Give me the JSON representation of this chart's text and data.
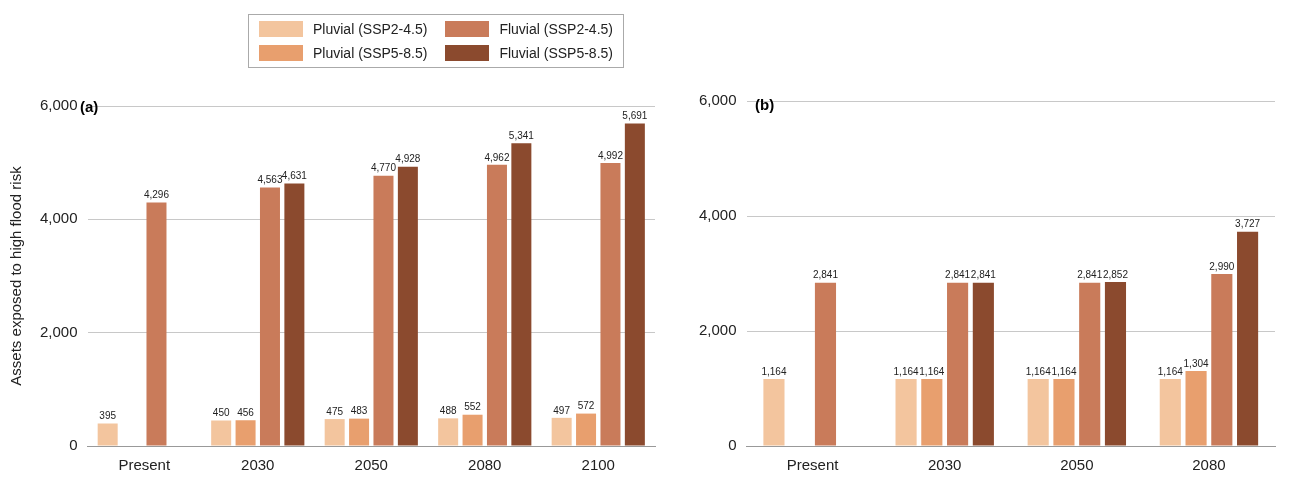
{
  "chart_data": [
    {
      "type": "bar",
      "title": "(a)",
      "ylabel": "Assets exposed to high flood risk",
      "categories": [
        "Present",
        "2030",
        "2050",
        "2080",
        "2100"
      ],
      "series": [
        {
          "name": "Pluvial (SSP2-4.5)",
          "color": "#f3c59e",
          "values": [
            395,
            450,
            475,
            488,
            497
          ],
          "value_labels": [
            "395",
            "450",
            "475",
            "488",
            "497"
          ]
        },
        {
          "name": "Pluvial (SSP5-8.5)",
          "color": "#e89f6e",
          "values": [
            null,
            456,
            483,
            552,
            572
          ],
          "value_labels": [
            null,
            "456",
            "483",
            "552",
            "572"
          ]
        },
        {
          "name": "Fluvial (SSP2-4.5)",
          "color": "#c97b5a",
          "values": [
            4296,
            4563,
            4770,
            4962,
            4992
          ],
          "value_labels": [
            "4,296",
            "4,563",
            "4,770",
            "4,962",
            "4,992"
          ]
        },
        {
          "name": "Fluvial (SSP5-8.5)",
          "color": "#8b4a2e",
          "values": [
            null,
            4631,
            4928,
            5341,
            5691
          ],
          "value_labels": [
            null,
            "4,631",
            "4,928",
            "5,341",
            "5,691"
          ]
        }
      ],
      "ylim": [
        0,
        6000
      ],
      "yticks": [
        0,
        {
          "value": 2000,
          "label": "2,000"
        },
        {
          "value": 4000,
          "label": "4,000"
        },
        {
          "value": 6000,
          "label": "6,000"
        }
      ],
      "grid": "y",
      "legend": "top"
    },
    {
      "type": "bar",
      "title": "(b)",
      "categories": [
        "Present",
        "2030",
        "2050",
        "2080"
      ],
      "series": [
        {
          "color": "#f3c59e",
          "values": [
            1164,
            1164,
            1164,
            1164
          ],
          "value_labels": [
            "1,164",
            "1,164",
            "1,164",
            "1,164"
          ]
        },
        {
          "color": "#e89f6e",
          "values": [
            null,
            1164,
            1164,
            1304
          ],
          "value_labels": [
            null,
            "1,164",
            "1,164",
            "1,304"
          ]
        },
        {
          "color": "#c97b5a",
          "values": [
            2841,
            2841,
            2841,
            2990
          ],
          "value_labels": [
            "2,841",
            "2,841",
            "2,841",
            "2,990"
          ]
        },
        {
          "color": "#8b4a2e",
          "values": [
            null,
            2841,
            2852,
            3727
          ],
          "value_labels": [
            null,
            "2,841",
            "2,852",
            "3,727"
          ]
        }
      ],
      "ylim": [
        0,
        6000
      ],
      "yticks": [
        0,
        {
          "value": 2000,
          "label": "2,000"
        },
        {
          "value": 4000,
          "label": "4,000"
        },
        {
          "value": 6000,
          "label": "6,000"
        }
      ],
      "grid": "y"
    }
  ]
}
